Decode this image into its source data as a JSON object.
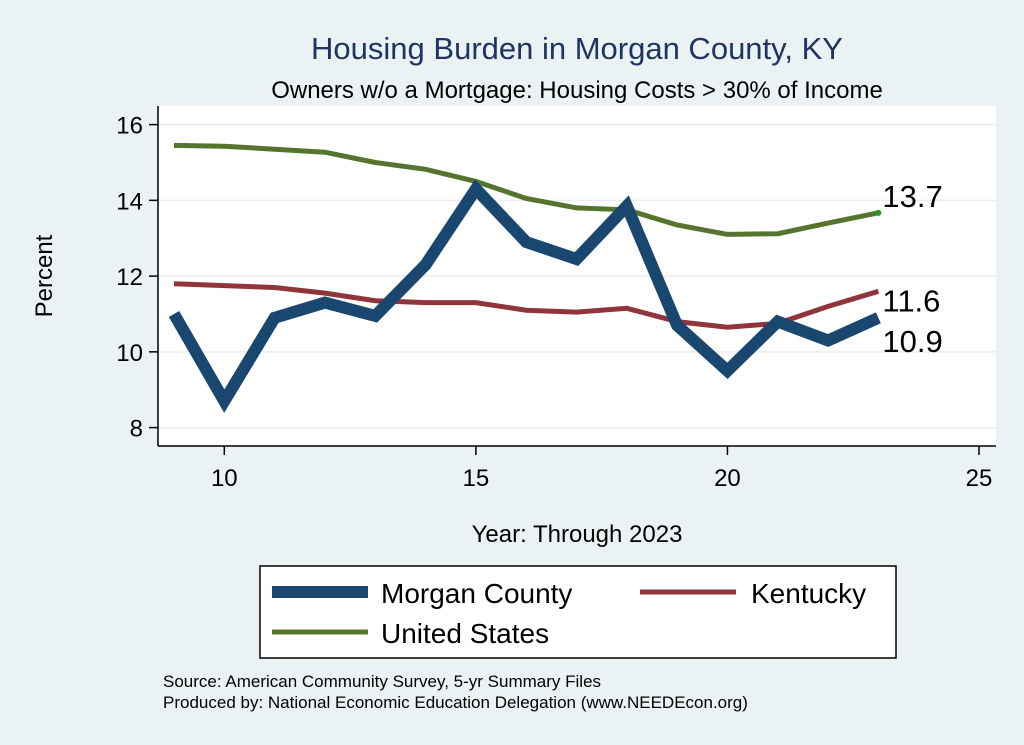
{
  "chart_data": {
    "type": "line",
    "title": "Housing Burden in Morgan County, KY",
    "subtitle": "Owners w/o a Mortgage: Housing Costs > 30% of Income",
    "xlabel": "Year: Through 2023",
    "ylabel": "Percent",
    "xlim": [
      9,
      25
    ],
    "ylim": [
      7.6,
      16.4
    ],
    "x_ticks": [
      10,
      15,
      20,
      25
    ],
    "y_ticks": [
      8,
      10,
      12,
      14,
      16
    ],
    "grid": true,
    "legend_position": "bottom",
    "x": [
      9,
      10,
      11,
      12,
      13,
      14,
      15,
      16,
      17,
      18,
      19,
      20,
      21,
      22,
      23
    ],
    "series": [
      {
        "name": "Morgan County",
        "color": "#1a476f",
        "values": [
          11.0,
          8.7,
          10.9,
          11.3,
          10.95,
          12.3,
          14.3,
          12.9,
          12.45,
          13.85,
          10.7,
          9.5,
          10.8,
          10.3,
          10.9
        ],
        "end_label": "10.9"
      },
      {
        "name": "Kentucky",
        "color": "#90353b",
        "values": [
          11.8,
          11.75,
          11.7,
          11.55,
          11.35,
          11.3,
          11.3,
          11.1,
          11.05,
          11.15,
          10.8,
          10.65,
          10.75,
          11.2,
          11.6
        ],
        "end_label": "11.6"
      },
      {
        "name": "United States",
        "color": "#55752f",
        "values": [
          15.45,
          15.43,
          15.35,
          15.27,
          15.0,
          14.82,
          14.5,
          14.05,
          13.8,
          13.75,
          13.35,
          13.1,
          13.12,
          13.4,
          13.67
        ],
        "end_label": "13.7"
      }
    ]
  },
  "notes": {
    "source": "Source: American Community Survey, 5-yr Summary Files",
    "produced_by": "Produced by: National Economic Education Delegation (www.NEEDEcon.org)"
  }
}
